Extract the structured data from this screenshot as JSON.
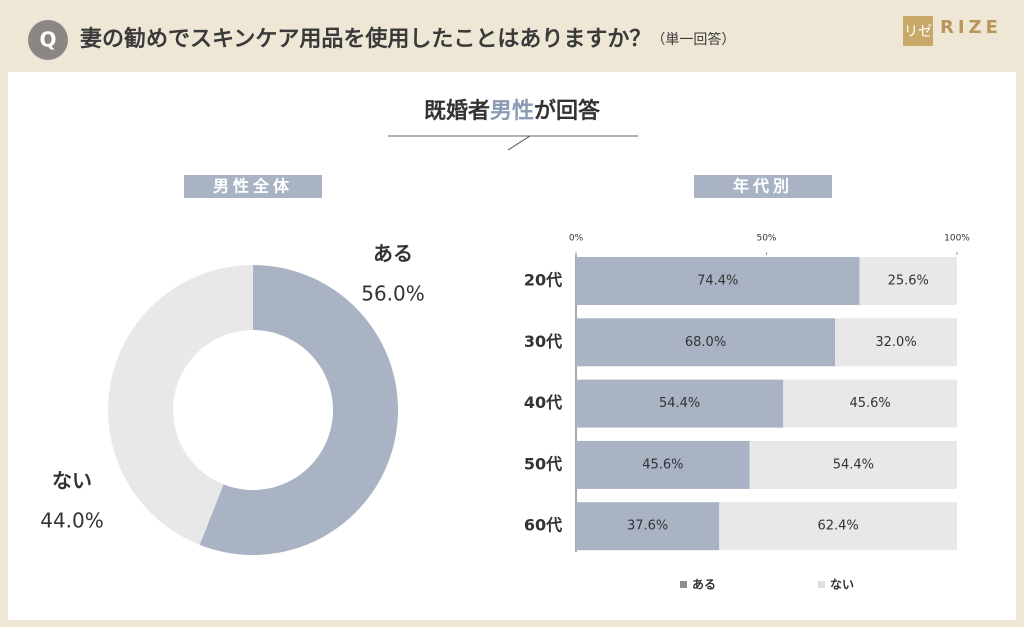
{
  "header": {
    "badge": "Q",
    "question": "妻の勧めでスキンケア用品を使用したことはありますか？",
    "note": "（単一回答）",
    "logo_mark": "リゼ",
    "logo_text": "RIZE"
  },
  "subtitle": {
    "before": "既婚者",
    "highlight": "男性",
    "after": "が回答"
  },
  "chart_data": [
    {
      "type": "pie",
      "title": "男性全体",
      "categories": [
        "ある",
        "ない"
      ],
      "values": [
        56.0,
        44.0
      ],
      "value_labels": [
        "56.0%",
        "44.0%"
      ],
      "colors": [
        "#a9b3c4",
        "#e8e8e8"
      ],
      "donut": true
    },
    {
      "type": "stacked_barh",
      "title": "年代別",
      "categories": [
        "20代",
        "30代",
        "40代",
        "50代",
        "60代"
      ],
      "series": [
        {
          "name": "ある",
          "color": "#a9b3c4",
          "values": [
            74.4,
            68.0,
            54.4,
            45.6,
            37.6
          ],
          "value_labels": [
            "74.4%",
            "68.0%",
            "54.4%",
            "45.6%",
            "37.6%"
          ]
        },
        {
          "name": "ない",
          "color": "#e8e8e8",
          "values": [
            25.6,
            32.0,
            45.6,
            54.4,
            62.4
          ],
          "value_labels": [
            "25.6%",
            "32.0%",
            "45.6%",
            "54.4%",
            "62.4%"
          ]
        }
      ],
      "xlim": [
        0,
        100
      ],
      "xticks": [
        {
          "value": 0,
          "label": "0%"
        },
        {
          "value": 50,
          "label": "50%"
        },
        {
          "value": 100,
          "label": "100%"
        }
      ],
      "legend": "bottom"
    }
  ]
}
